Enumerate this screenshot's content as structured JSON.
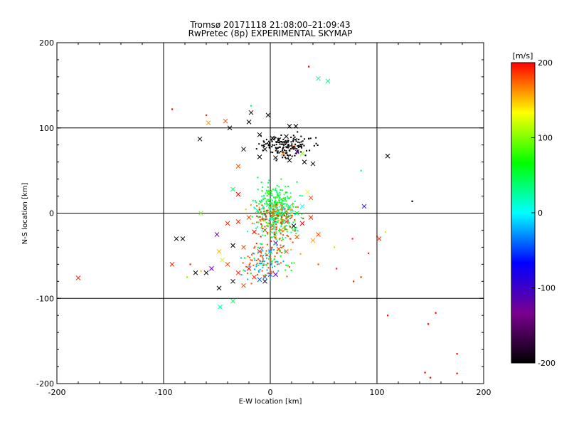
{
  "chart_data": {
    "type": "scatter",
    "title": "Tromsø 20171118 21:08:00–21:09:43",
    "subtitle": "RwPretec (8p) EXPERIMENTAL SKYMAP",
    "xlabel": "E-W location [km]",
    "ylabel": "N-S location [km]",
    "xlim": [
      -200,
      200
    ],
    "ylim": [
      -200,
      200
    ],
    "xticks": [
      "-200",
      "-100",
      "0",
      "100",
      "200"
    ],
    "yticks": [
      "-200",
      "-100",
      "0",
      "100",
      "200"
    ],
    "grid": true,
    "colorbar": {
      "label": "[m/s]",
      "range": [
        -200,
        200
      ],
      "ticks": [
        "200",
        "100",
        "0",
        "-100",
        "-200"
      ],
      "colors": [
        "#000000",
        "#7a0090",
        "#0000ff",
        "#00ffff",
        "#00ff00",
        "#ffff00",
        "#ff0000"
      ]
    },
    "markers": {
      "cross": [
        {
          "x": 45,
          "y": 158,
          "v": 30
        },
        {
          "x": 54,
          "y": 155,
          "v": 30
        },
        {
          "x": -58,
          "y": 106,
          "v": 160
        },
        {
          "x": -42,
          "y": 108,
          "v": 180
        },
        {
          "x": -66,
          "y": 87,
          "v": -200
        },
        {
          "x": -38,
          "y": 100,
          "v": -200
        },
        {
          "x": -18,
          "y": 118,
          "v": -200
        },
        {
          "x": -20,
          "y": 107,
          "v": -200
        },
        {
          "x": -2,
          "y": 115,
          "v": -200
        },
        {
          "x": 18,
          "y": 102,
          "v": -200
        },
        {
          "x": 24,
          "y": 102,
          "v": -200
        },
        {
          "x": 110,
          "y": 67,
          "v": -200
        },
        {
          "x": -10,
          "y": 92,
          "v": -200
        },
        {
          "x": 2,
          "y": 88,
          "v": -200
        },
        {
          "x": 8,
          "y": 86,
          "v": -200
        },
        {
          "x": 15,
          "y": 90,
          "v": -200
        },
        {
          "x": 22,
          "y": 78,
          "v": 180
        },
        {
          "x": -5,
          "y": 75,
          "v": -200
        },
        {
          "x": 30,
          "y": 70,
          "v": 100
        },
        {
          "x": 25,
          "y": 72,
          "v": -120
        },
        {
          "x": 32,
          "y": 60,
          "v": -200
        },
        {
          "x": 40,
          "y": 58,
          "v": -200
        },
        {
          "x": -25,
          "y": 75,
          "v": -200
        },
        {
          "x": 5,
          "y": 65,
          "v": -200
        },
        {
          "x": 18,
          "y": 62,
          "v": -200
        },
        {
          "x": 12,
          "y": 70,
          "v": 170
        },
        {
          "x": -30,
          "y": 55,
          "v": 180
        },
        {
          "x": -10,
          "y": 66,
          "v": -200
        },
        {
          "x": -30,
          "y": 22,
          "v": 200
        },
        {
          "x": -35,
          "y": 28,
          "v": 40
        },
        {
          "x": 35,
          "y": 25,
          "v": 130
        },
        {
          "x": 38,
          "y": 18,
          "v": 180
        },
        {
          "x": 88,
          "y": 8,
          "v": -100
        },
        {
          "x": 102,
          "y": -30,
          "v": 190
        },
        {
          "x": -65,
          "y": 0,
          "v": 100
        },
        {
          "x": -40,
          "y": -12,
          "v": 190
        },
        {
          "x": -50,
          "y": -25,
          "v": -120
        },
        {
          "x": -88,
          "y": -30,
          "v": -200
        },
        {
          "x": -82,
          "y": -30,
          "v": -200
        },
        {
          "x": -30,
          "y": -10,
          "v": 190
        },
        {
          "x": -20,
          "y": -5,
          "v": 180
        },
        {
          "x": -15,
          "y": -22,
          "v": 200
        },
        {
          "x": -5,
          "y": -20,
          "v": 190
        },
        {
          "x": 2,
          "y": -15,
          "v": 180
        },
        {
          "x": 10,
          "y": -20,
          "v": 170
        },
        {
          "x": 15,
          "y": -10,
          "v": 190
        },
        {
          "x": 22,
          "y": -15,
          "v": -200
        },
        {
          "x": 30,
          "y": -12,
          "v": 200
        },
        {
          "x": 38,
          "y": -5,
          "v": 190
        },
        {
          "x": 45,
          "y": -25,
          "v": 180
        },
        {
          "x": 40,
          "y": -32,
          "v": 160
        },
        {
          "x": 25,
          "y": -28,
          "v": 180
        },
        {
          "x": 5,
          "y": -35,
          "v": -120
        },
        {
          "x": 8,
          "y": -42,
          "v": 190
        },
        {
          "x": 15,
          "y": -45,
          "v": 180
        },
        {
          "x": 0,
          "y": -45,
          "v": -20
        },
        {
          "x": -10,
          "y": -45,
          "v": 190
        },
        {
          "x": -25,
          "y": -40,
          "v": 180
        },
        {
          "x": -35,
          "y": -38,
          "v": -200
        },
        {
          "x": -48,
          "y": -45,
          "v": 150
        },
        {
          "x": -55,
          "y": -65,
          "v": -120
        },
        {
          "x": -60,
          "y": -70,
          "v": -200
        },
        {
          "x": -40,
          "y": -60,
          "v": 180
        },
        {
          "x": -45,
          "y": -55,
          "v": 120
        },
        {
          "x": -30,
          "y": -70,
          "v": 190
        },
        {
          "x": -20,
          "y": -65,
          "v": 200
        },
        {
          "x": -15,
          "y": -75,
          "v": 190
        },
        {
          "x": -25,
          "y": -85,
          "v": 180
        },
        {
          "x": -5,
          "y": -80,
          "v": -200
        },
        {
          "x": -10,
          "y": -78,
          "v": -40
        },
        {
          "x": -5,
          "y": -75,
          "v": -40
        },
        {
          "x": 0,
          "y": -72,
          "v": -40
        },
        {
          "x": 5,
          "y": -72,
          "v": -120
        },
        {
          "x": -35,
          "y": -80,
          "v": -200
        },
        {
          "x": -48,
          "y": -88,
          "v": -200
        },
        {
          "x": -47,
          "y": -110,
          "v": 20
        },
        {
          "x": -35,
          "y": -103,
          "v": 40
        },
        {
          "x": -92,
          "y": -60,
          "v": 190
        },
        {
          "x": -180,
          "y": -76,
          "v": 190
        },
        {
          "x": -70,
          "y": -70,
          "v": -200
        },
        {
          "x": 12,
          "y": 5,
          "v": 0
        },
        {
          "x": 18,
          "y": 8,
          "v": 20
        },
        {
          "x": -2,
          "y": 10,
          "v": 40
        },
        {
          "x": 8,
          "y": 20,
          "v": 60
        },
        {
          "x": 0,
          "y": 25,
          "v": 90
        },
        {
          "x": -12,
          "y": 3,
          "v": 30
        },
        {
          "x": 25,
          "y": 0,
          "v": 50
        },
        {
          "x": 30,
          "y": 8,
          "v": 0
        }
      ],
      "dot": [
        {
          "x": 36,
          "y": 172,
          "v": 200
        },
        {
          "x": -92,
          "y": 122,
          "v": 200
        },
        {
          "x": -60,
          "y": 115,
          "v": 190
        },
        {
          "x": -18,
          "y": 126,
          "v": 40
        },
        {
          "x": 85,
          "y": 50,
          "v": 30
        },
        {
          "x": 133,
          "y": 14,
          "v": -200
        },
        {
          "x": 100,
          "y": -27,
          "v": 190
        },
        {
          "x": 108,
          "y": -22,
          "v": 120
        },
        {
          "x": 77,
          "y": -30,
          "v": 190
        },
        {
          "x": 92,
          "y": -47,
          "v": 190
        },
        {
          "x": 85,
          "y": -75,
          "v": 190
        },
        {
          "x": 78,
          "y": -80,
          "v": 190
        },
        {
          "x": 110,
          "y": -120,
          "v": 200
        },
        {
          "x": 148,
          "y": -130,
          "v": 200
        },
        {
          "x": 155,
          "y": -117,
          "v": 200
        },
        {
          "x": 175,
          "y": -165,
          "v": 200
        },
        {
          "x": 145,
          "y": -187,
          "v": 200
        },
        {
          "x": 150,
          "y": -193,
          "v": 200
        },
        {
          "x": 175,
          "y": -188,
          "v": 200
        },
        {
          "x": 60,
          "y": -40,
          "v": 110
        },
        {
          "x": 45,
          "y": -60,
          "v": 180
        },
        {
          "x": 62,
          "y": -65,
          "v": 190
        },
        {
          "x": -75,
          "y": -60,
          "v": 190
        },
        {
          "x": -65,
          "y": -68,
          "v": 150
        },
        {
          "x": -78,
          "y": -75,
          "v": 100
        }
      ]
    }
  }
}
